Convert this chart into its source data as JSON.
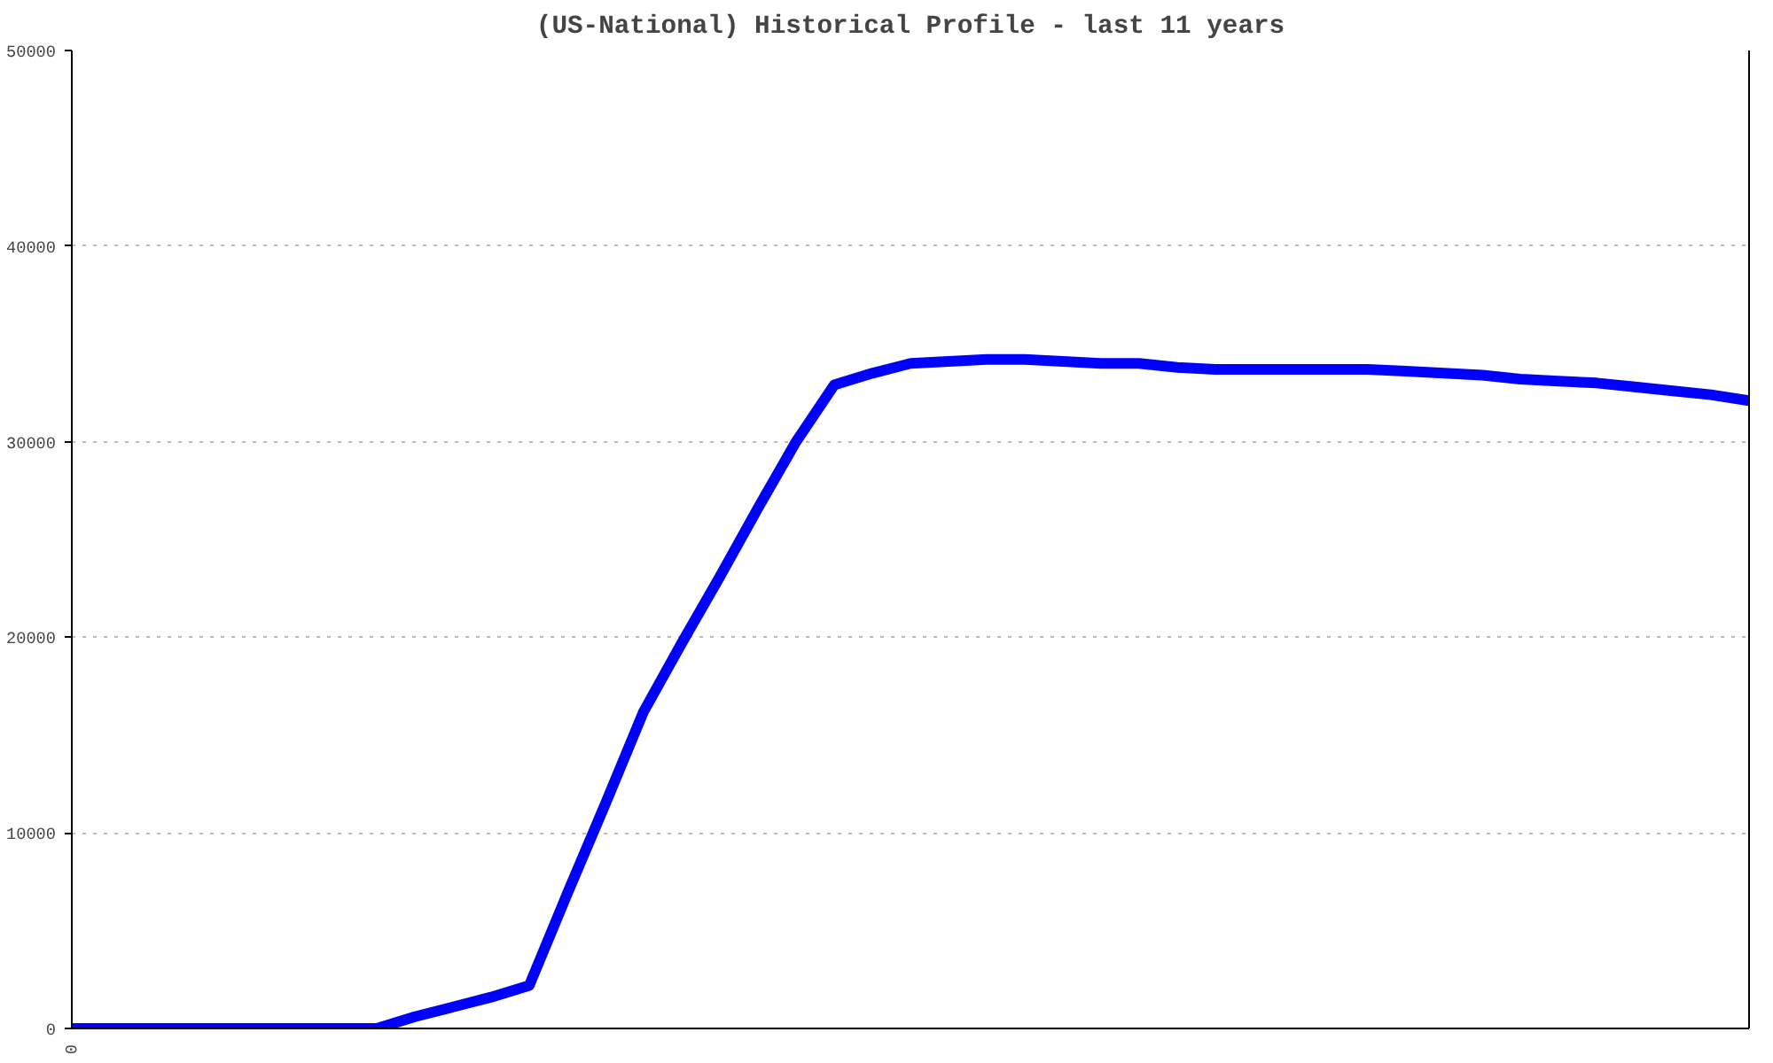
{
  "chart_data": {
    "type": "line",
    "title": "(US-National) Historical Profile - last 11 years",
    "categories": [
      null,
      null,
      null,
      null,
      null,
      null,
      null,
      null,
      null,
      null,
      null,
      null,
      null,
      null,
      null,
      null,
      null,
      null,
      null,
      null,
      null,
      null,
      null,
      null,
      null,
      null,
      null,
      null,
      null,
      null,
      null,
      null,
      null,
      null,
      null,
      null,
      null,
      null,
      null,
      null,
      null,
      null,
      null,
      null,
      null
    ],
    "series": [
      {
        "color": "#0000ff",
        "values": [
          0,
          0,
          0,
          0,
          0,
          0,
          0,
          0,
          0,
          600,
          1100,
          1600,
          2200,
          6900,
          11500,
          16200,
          19700,
          23100,
          26600,
          30000,
          32900,
          33500,
          34000,
          34100,
          34200,
          34200,
          34100,
          34000,
          34000,
          33800,
          33700,
          33700,
          33700,
          33700,
          33700,
          33600,
          33500,
          33400,
          33200,
          33100,
          33000,
          32800,
          32600,
          32400,
          32100
        ]
      }
    ],
    "annotations": [
      "0"
    ],
    "ylim": [
      0,
      50000
    ],
    "yticks": [
      0,
      10000,
      20000,
      30000,
      40000,
      50000
    ],
    "grid": "y",
    "line_style": "solid",
    "marker": "none"
  }
}
